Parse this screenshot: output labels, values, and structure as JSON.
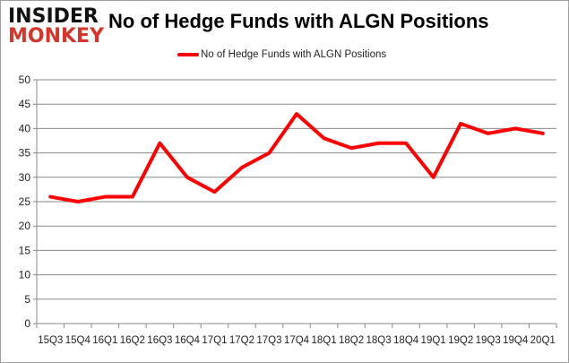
{
  "logo": {
    "line1": "INSIDER",
    "line2": "MONKEY"
  },
  "chart_data": {
    "type": "line",
    "title": "No of Hedge Funds with ALGN Positions",
    "xlabel": "",
    "ylabel": "",
    "categories": [
      "15Q3",
      "15Q4",
      "16Q1",
      "16Q2",
      "16Q3",
      "16Q4",
      "17Q1",
      "17Q2",
      "17Q3",
      "17Q4",
      "18Q1",
      "18Q2",
      "18Q3",
      "18Q4",
      "19Q1",
      "19Q2",
      "19Q3",
      "19Q4",
      "20Q1"
    ],
    "series": [
      {
        "name": "No of Hedge Funds with ALGN Positions",
        "color": "#ff0000",
        "values": [
          26,
          25,
          26,
          26,
          37,
          30,
          27,
          32,
          35,
          43,
          38,
          36,
          37,
          37,
          30,
          41,
          39,
          40,
          39
        ]
      }
    ],
    "ylim": [
      0,
      50
    ],
    "yticks": [
      0,
      5,
      10,
      15,
      20,
      25,
      30,
      35,
      40,
      45,
      50
    ],
    "grid": true,
    "legend_position": "top"
  }
}
